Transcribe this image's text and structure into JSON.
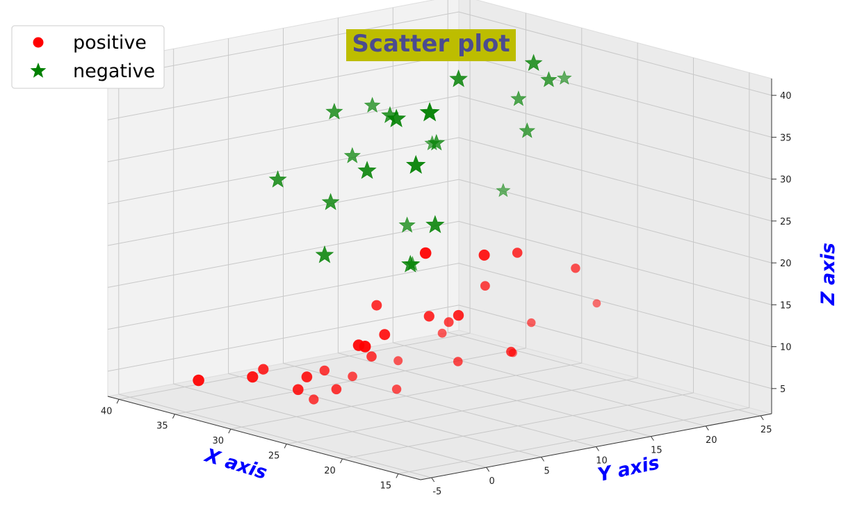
{
  "chart_data": {
    "type": "scatter",
    "projection": "3d",
    "title": "Scatter plot",
    "title_color": "#4b4b8f",
    "title_background": "#bdbd00",
    "xlabel": "X axis",
    "ylabel": "Y axis",
    "zlabel": "Z axis",
    "axis_label_color": "#0000ff",
    "xlim": [
      13,
      41
    ],
    "ylim": [
      -6,
      26
    ],
    "zlim": [
      2,
      42
    ],
    "xticks": [
      15,
      20,
      25,
      30,
      35,
      40
    ],
    "yticks": [
      -5,
      0,
      5,
      10,
      15,
      20,
      25
    ],
    "zticks": [
      5,
      10,
      15,
      20,
      25,
      30,
      35,
      40
    ],
    "grid": true,
    "legend_position": "top-left",
    "series": [
      {
        "name": "positive",
        "marker": "circle",
        "color": "#ff0000",
        "points": [
          {
            "x": 24.0,
            "y": -1.0,
            "z": 9.2
          },
          {
            "x": 26.0,
            "y": -2.5,
            "z": 6.1
          },
          {
            "x": 28.0,
            "y": 1.6,
            "z": 5.6
          },
          {
            "x": 33.0,
            "y": 4.0,
            "z": 4.7
          },
          {
            "x": 32.8,
            "y": 3.0,
            "z": 3.5
          },
          {
            "x": 23.5,
            "y": 8.1,
            "z": 8.9
          },
          {
            "x": 16.9,
            "y": 6.4,
            "z": 12.7
          },
          {
            "x": 20.1,
            "y": 3.2,
            "z": 14.7
          },
          {
            "x": 27.0,
            "y": -0.5,
            "z": 8.7
          },
          {
            "x": 31.0,
            "y": -2.0,
            "z": 7.8
          },
          {
            "x": 35.5,
            "y": 1.6,
            "z": 4.4
          },
          {
            "x": 37.0,
            "y": -1.8,
            "z": 4.3
          },
          {
            "x": 21.1,
            "y": 0.2,
            "z": 11.8
          },
          {
            "x": 22.8,
            "y": 1.8,
            "z": 7.4
          },
          {
            "x": 15.3,
            "y": 12.4,
            "z": 17.7
          },
          {
            "x": 18.7,
            "y": 9.9,
            "z": 14.8
          },
          {
            "x": 29.5,
            "y": 6.8,
            "z": 13.8
          },
          {
            "x": 33.5,
            "y": 11.6,
            "z": 7.7
          },
          {
            "x": 36.8,
            "y": 12.6,
            "z": 5.0
          },
          {
            "x": 38.3,
            "y": 14.7,
            "z": 3.8
          },
          {
            "x": 26.6,
            "y": 16.1,
            "z": 7.0
          },
          {
            "x": 22.5,
            "y": 17.8,
            "z": 18.0
          },
          {
            "x": 28.2,
            "y": 18.3,
            "z": 17.7
          },
          {
            "x": 31.9,
            "y": 16.7,
            "z": 9.3
          },
          {
            "x": 34.4,
            "y": 21.6,
            "z": 14.4
          },
          {
            "x": 37.3,
            "y": 19.2,
            "z": 14.2
          },
          {
            "x": 25.5,
            "y": 9.3,
            "z": 12.6
          },
          {
            "x": 30.5,
            "y": 12.6,
            "z": 10.7
          },
          {
            "x": 27.7,
            "y": 4.5,
            "z": 8.9
          },
          {
            "x": 24.7,
            "y": 11.8,
            "z": 16.6
          }
        ]
      },
      {
        "name": "negative",
        "marker": "star",
        "color": "#008000",
        "points": [
          {
            "x": 25.0,
            "y": 0.0,
            "z": 34.9
          },
          {
            "x": 23.8,
            "y": 0.6,
            "z": 41.2
          },
          {
            "x": 20.7,
            "y": 2.9,
            "z": 37.2
          },
          {
            "x": 30.0,
            "y": -1.7,
            "z": 30.7
          },
          {
            "x": 27.4,
            "y": 0.8,
            "z": 39.1
          },
          {
            "x": 16.7,
            "y": 5.3,
            "z": 32.4
          },
          {
            "x": 28.6,
            "y": 7.1,
            "z": 36.7
          },
          {
            "x": 29.2,
            "y": 2.3,
            "z": 27.3
          },
          {
            "x": 22.3,
            "y": 12.4,
            "z": 39.6
          },
          {
            "x": 26.9,
            "y": 9.6,
            "z": 33.4
          },
          {
            "x": 18.1,
            "y": 12.3,
            "z": 43.6
          },
          {
            "x": 33.4,
            "y": 9.9,
            "z": 27.7
          },
          {
            "x": 31.4,
            "y": 16.2,
            "z": 37.8
          },
          {
            "x": 24.6,
            "y": 17.5,
            "z": 39.8
          },
          {
            "x": 35.1,
            "y": 14.3,
            "z": 32.2
          },
          {
            "x": 29.1,
            "y": 20.7,
            "z": 39.4
          },
          {
            "x": 36.3,
            "y": 17.3,
            "z": 25.5
          },
          {
            "x": 20.6,
            "y": 1.0,
            "z": 23.3
          },
          {
            "x": 25.3,
            "y": 5.3,
            "z": 25.2
          },
          {
            "x": 31.0,
            "y": 11.4,
            "z": 17.0
          },
          {
            "x": 33.4,
            "y": 16.1,
            "z": 19.7
          },
          {
            "x": 38.4,
            "y": 20.7,
            "z": 30.2
          },
          {
            "x": 23.1,
            "y": 14.0,
            "z": 35.1
          },
          {
            "x": 31.9,
            "y": 4.5,
            "z": 19.5
          }
        ]
      }
    ]
  }
}
